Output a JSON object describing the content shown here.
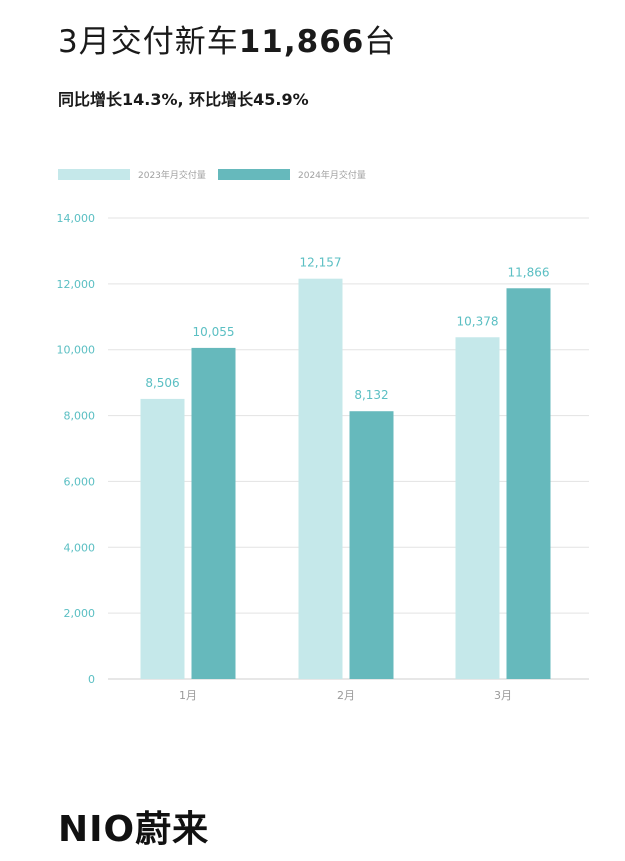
{
  "header": {
    "title_prefix": "3月交付新车",
    "title_number": "11,866",
    "title_suffix": "台",
    "subtitle": "同比增长14.3%, 环比增长45.9%"
  },
  "brand": {
    "logo_text": "NIO蔚来"
  },
  "colors": {
    "series_2023": "#c5e8ea",
    "series_2024": "#66b9bc",
    "axis_text": "#5bbfc3",
    "grid": "#e3e3e3"
  },
  "chart_data": {
    "type": "bar",
    "categories": [
      "1月",
      "2月",
      "3月"
    ],
    "series": [
      {
        "name": "2023年月交付量",
        "values": [
          8506,
          12157,
          10378
        ],
        "labels": [
          "8,506",
          "12,157",
          "10,378"
        ]
      },
      {
        "name": "2024年月交付量",
        "values": [
          10055,
          8132,
          11866
        ],
        "labels": [
          "10,055",
          "8,132",
          "11,866"
        ]
      }
    ],
    "ylim": [
      0,
      14000
    ],
    "yticks": [
      0,
      2000,
      4000,
      6000,
      8000,
      10000,
      12000,
      14000
    ],
    "ytick_labels": [
      "0",
      "2,000",
      "4,000",
      "6,000",
      "8,000",
      "10,000",
      "12,000",
      "14,000"
    ],
    "grid": true,
    "legend": "top-left"
  }
}
